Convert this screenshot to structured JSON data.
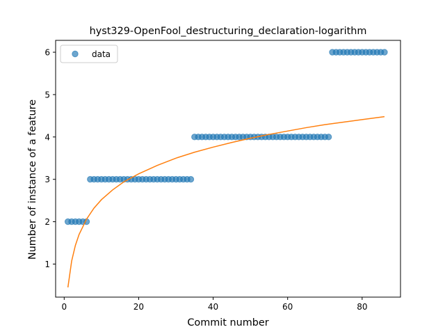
{
  "chart_data": {
    "type": "scatter",
    "title": "hyst329-OpenFool_destructuring_declaration-logarithm",
    "xlabel": "Commit number",
    "ylabel": "Number of instance of a feature",
    "xlim": [
      -2.3,
      90.3
    ],
    "ylim": [
      0.22,
      6.28
    ],
    "xticks": [
      0,
      20,
      40,
      60,
      80
    ],
    "yticks": [
      1,
      2,
      3,
      4,
      5,
      6
    ],
    "legend": {
      "position": "top-left",
      "entries": [
        "data"
      ]
    },
    "grid": false,
    "colors": {
      "data": "#1f77b4",
      "fit": "#ff7f0e"
    },
    "series": [
      {
        "name": "data",
        "kind": "scatter",
        "points": [
          [
            1,
            2
          ],
          [
            2,
            2
          ],
          [
            3,
            2
          ],
          [
            4,
            2
          ],
          [
            5,
            2
          ],
          [
            6,
            2
          ],
          [
            7,
            3
          ],
          [
            8,
            3
          ],
          [
            9,
            3
          ],
          [
            10,
            3
          ],
          [
            11,
            3
          ],
          [
            12,
            3
          ],
          [
            13,
            3
          ],
          [
            14,
            3
          ],
          [
            15,
            3
          ],
          [
            16,
            3
          ],
          [
            17,
            3
          ],
          [
            18,
            3
          ],
          [
            19,
            3
          ],
          [
            20,
            3
          ],
          [
            21,
            3
          ],
          [
            22,
            3
          ],
          [
            23,
            3
          ],
          [
            24,
            3
          ],
          [
            25,
            3
          ],
          [
            26,
            3
          ],
          [
            27,
            3
          ],
          [
            28,
            3
          ],
          [
            29,
            3
          ],
          [
            30,
            3
          ],
          [
            31,
            3
          ],
          [
            32,
            3
          ],
          [
            33,
            3
          ],
          [
            34,
            3
          ],
          [
            35,
            4
          ],
          [
            36,
            4
          ],
          [
            37,
            4
          ],
          [
            38,
            4
          ],
          [
            39,
            4
          ],
          [
            40,
            4
          ],
          [
            41,
            4
          ],
          [
            42,
            4
          ],
          [
            43,
            4
          ],
          [
            44,
            4
          ],
          [
            45,
            4
          ],
          [
            46,
            4
          ],
          [
            47,
            4
          ],
          [
            48,
            4
          ],
          [
            49,
            4
          ],
          [
            50,
            4
          ],
          [
            51,
            4
          ],
          [
            52,
            4
          ],
          [
            53,
            4
          ],
          [
            54,
            4
          ],
          [
            55,
            4
          ],
          [
            56,
            4
          ],
          [
            57,
            4
          ],
          [
            58,
            4
          ],
          [
            59,
            4
          ],
          [
            60,
            4
          ],
          [
            61,
            4
          ],
          [
            62,
            4
          ],
          [
            63,
            4
          ],
          [
            64,
            4
          ],
          [
            65,
            4
          ],
          [
            66,
            4
          ],
          [
            67,
            4
          ],
          [
            68,
            4
          ],
          [
            69,
            4
          ],
          [
            70,
            4
          ],
          [
            71,
            4
          ],
          [
            72,
            6
          ],
          [
            73,
            6
          ],
          [
            74,
            6
          ],
          [
            75,
            6
          ],
          [
            76,
            6
          ],
          [
            77,
            6
          ],
          [
            78,
            6
          ],
          [
            79,
            6
          ],
          [
            80,
            6
          ],
          [
            81,
            6
          ],
          [
            82,
            6
          ],
          [
            83,
            6
          ],
          [
            84,
            6
          ],
          [
            85,
            6
          ],
          [
            86,
            6
          ]
        ]
      },
      {
        "kind": "line",
        "points": [
          [
            1,
            0.45
          ],
          [
            2,
            1.07
          ],
          [
            3,
            1.44
          ],
          [
            4,
            1.7
          ],
          [
            6,
            2.06
          ],
          [
            8,
            2.32
          ],
          [
            10,
            2.52
          ],
          [
            13,
            2.75
          ],
          [
            16,
            2.94
          ],
          [
            20,
            3.13
          ],
          [
            25,
            3.33
          ],
          [
            30,
            3.5
          ],
          [
            35,
            3.64
          ],
          [
            40,
            3.76
          ],
          [
            45,
            3.87
          ],
          [
            50,
            3.97
          ],
          [
            55,
            4.06
          ],
          [
            60,
            4.14
          ],
          [
            65,
            4.22
          ],
          [
            70,
            4.29
          ],
          [
            75,
            4.35
          ],
          [
            80,
            4.41
          ],
          [
            86,
            4.48
          ]
        ]
      }
    ]
  }
}
